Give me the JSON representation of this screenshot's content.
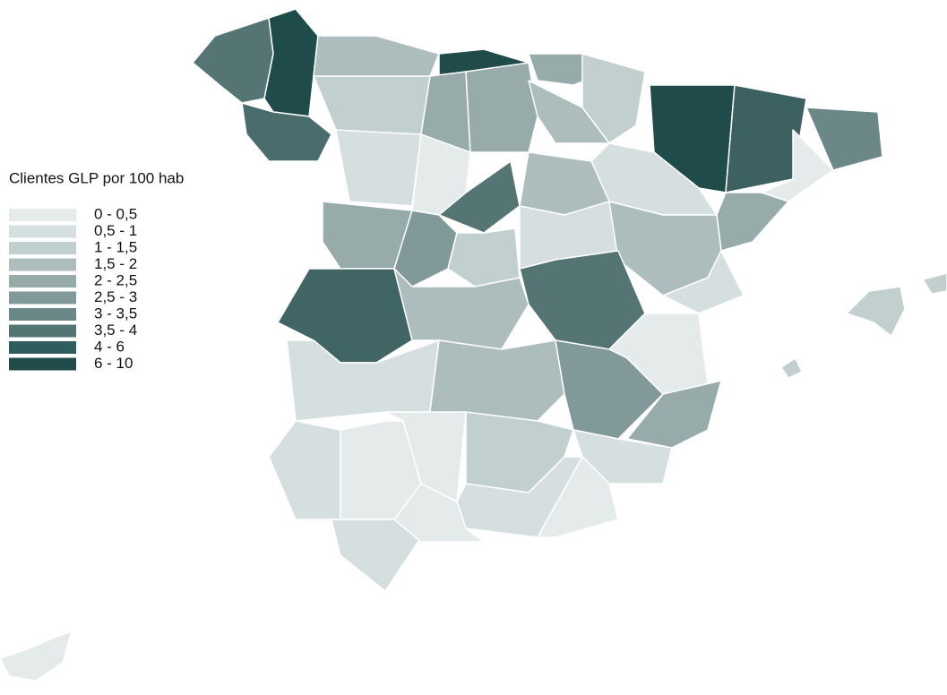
{
  "legend": {
    "title": "Clientes GLP por 100 hab",
    "items": [
      {
        "label": "0 - 0,5",
        "color": "#e5ebeb"
      },
      {
        "label": "0,5 - 1",
        "color": "#d6dfdf"
      },
      {
        "label": "1 - 1,5",
        "color": "#c2cfcf"
      },
      {
        "label": "1,5 - 2",
        "color": "#adbdbd"
      },
      {
        "label": "2 - 2,5",
        "color": "#97abab"
      },
      {
        "label": "2,5 - 3",
        "color": "#819999"
      },
      {
        "label": "3 - 3,5",
        "color": "#6b8787"
      },
      {
        "label": "3,5 - 4",
        "color": "#557575"
      },
      {
        "label": "4 - 6",
        "color": "#2f5c5c"
      },
      {
        "label": "6 - 10",
        "color": "#1f4b4b"
      }
    ]
  }
}
